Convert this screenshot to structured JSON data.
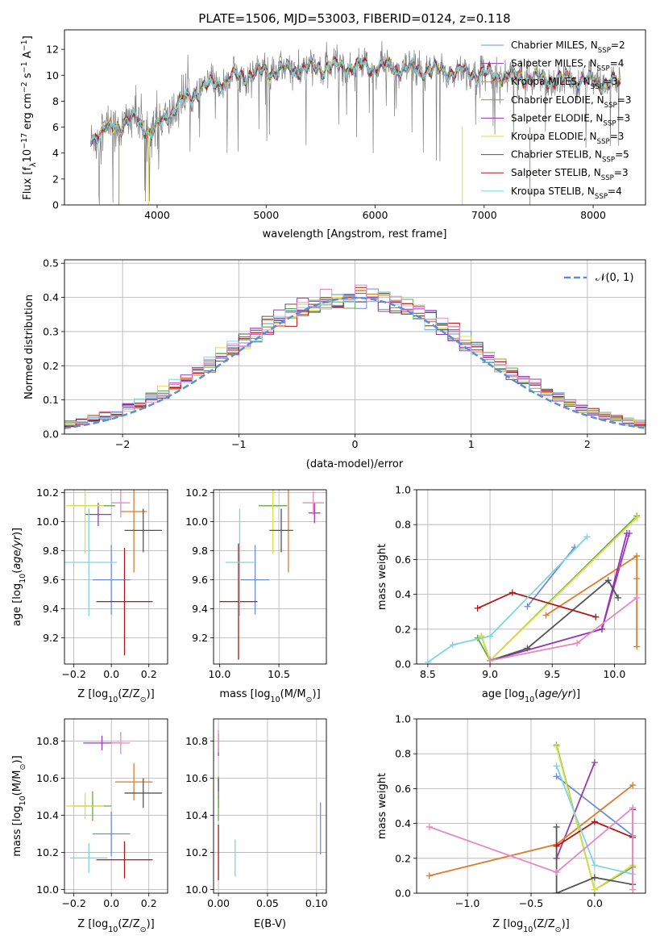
{
  "title": "PLATE=1506, MJD=53003, FIBERID=0124, z=0.118",
  "colors": {
    "chabrier_miles": "#6a8fd8",
    "salpeter_miles": "#9a3ab0",
    "kroupa_miles": "#e07a2a",
    "chabrier_elodie": "#66a84a",
    "salpeter_elodie": "#9a30b8",
    "kroupa_elodie": "#d8e040",
    "chabrier_stelib": "#555555",
    "salpeter_stelib": "#b01818",
    "kroupa_stelib": "#7fd4de",
    "pink": "#e888c0",
    "gauss": "#5a8fd8",
    "data": "#808080"
  },
  "chart_data": [
    {
      "id": "spectrum",
      "type": "line",
      "title": "PLATE=1506, MJD=53003, FIBERID=0124, z=0.118",
      "xlabel": "wavelength [Angstrom, rest frame]",
      "ylabel": "Flux [f",
      "xlim": [
        3150,
        8480
      ],
      "ylim": [
        0,
        13.5
      ],
      "xticks": [
        "4000",
        "5000",
        "6000",
        "7000",
        "8000"
      ],
      "xtick_values": [
        4000,
        5000,
        6000,
        7000,
        8000
      ],
      "yticks": [
        "0",
        "2",
        "4",
        "6",
        "8",
        "10",
        "12"
      ],
      "ytick_values": [
        0,
        2,
        4,
        6,
        8,
        10,
        12
      ],
      "legend_position": "upper-right",
      "legend": [
        {
          "label": "Chabrier MILES, N",
          "sub": "SSP",
          "val": "=2",
          "color": "#6a8fd8"
        },
        {
          "label": "Salpeter MILES, N",
          "sub": "SSP",
          "val": "=4",
          "color": "#9a3ab0"
        },
        {
          "label": "Kroupa MILES, N",
          "sub": "SSP",
          "val": "=3",
          "color": "#e07a2a"
        },
        {
          "label": "Chabrier ELODIE, N",
          "sub": "SSP",
          "val": "=3",
          "color": "#66a84a"
        },
        {
          "label": "Salpeter ELODIE, N",
          "sub": "SSP",
          "val": "=3",
          "color": "#9a30b8"
        },
        {
          "label": "Kroupa ELODIE, N",
          "sub": "SSP",
          "val": "=3",
          "color": "#d8e040"
        },
        {
          "label": "Chabrier STELIB, N",
          "sub": "SSP",
          "val": "=5",
          "color": "#555555"
        },
        {
          "label": "Salpeter STELIB, N",
          "sub": "SSP",
          "val": "=3",
          "color": "#b01818"
        },
        {
          "label": "Kroupa STELIB, N",
          "sub": "SSP",
          "val": "=4",
          "color": "#7fd4de"
        }
      ],
      "continuum_x": [
        3390,
        3600,
        3800,
        3950,
        4050,
        4200,
        4400,
        4600,
        4800,
        5000,
        5200,
        5500,
        5800,
        6100,
        6400,
        6700,
        7000,
        7300,
        7600,
        7900,
        8100,
        8250
      ],
      "continuum_y": [
        5.2,
        6.0,
        6.6,
        5.5,
        6.5,
        7.8,
        8.9,
        9.6,
        10.0,
        10.3,
        10.4,
        10.6,
        10.7,
        10.6,
        10.4,
        10.3,
        10.1,
        9.9,
        9.7,
        9.6,
        9.4,
        9.4
      ],
      "dropouts": [
        {
          "x": 3650,
          "color": "#e07a2a"
        },
        {
          "x": 3920,
          "color": "#d8e040"
        },
        {
          "x": 6800,
          "color": "#d8e040"
        },
        {
          "x": 7420,
          "color": "#e07a2a"
        }
      ]
    },
    {
      "id": "residual_hist",
      "type": "line",
      "xlabel": "(data-model)/error",
      "ylabel": "Normed distribution",
      "xlim": [
        -2.5,
        2.5
      ],
      "ylim": [
        0,
        0.51
      ],
      "xticks": [
        "−2",
        "−1",
        "0",
        "1",
        "2"
      ],
      "xtick_values": [
        -2,
        -1,
        0,
        1,
        2
      ],
      "yticks": [
        "0.0",
        "0.1",
        "0.2",
        "0.3",
        "0.4",
        "0.5"
      ],
      "ytick_values": [
        0,
        0.1,
        0.2,
        0.3,
        0.4,
        0.5
      ],
      "legend": [
        {
          "label": "𝒩(0, 1)",
          "color": "#5a8fd8",
          "style": "dashed"
        }
      ],
      "legend_position": "upper-right",
      "bin_width": 0.1,
      "bin_start": -2.5,
      "hist_colors": [
        "#6a8fd8",
        "#9a3ab0",
        "#e07a2a",
        "#66a84a",
        "#9a30b8",
        "#d8e040",
        "#555555",
        "#b01818",
        "#7fd4de",
        "#e888c0"
      ]
    },
    {
      "id": "age_vs_Z",
      "type": "scatter",
      "xlabel": "Z [log",
      "ylabel": "age  [log",
      "xlim": [
        -0.25,
        0.3
      ],
      "ylim": [
        9.02,
        10.22
      ],
      "xticks": [
        "−0.2",
        "0.0",
        "0.2"
      ],
      "xtick_values": [
        -0.2,
        0.0,
        0.2
      ],
      "yticks": [
        "9.2",
        "9.4",
        "9.6",
        "9.8",
        "10.0",
        "10.2"
      ],
      "ytick_values": [
        9.2,
        9.4,
        9.6,
        9.8,
        10.0,
        10.2
      ],
      "points": [
        {
          "x": 0.0,
          "y": 9.6,
          "xe": 0.1,
          "ye": 0.24,
          "color": "#6a8fd8"
        },
        {
          "x": -0.07,
          "y": 10.05,
          "xe": 0.07,
          "ye": 0.08,
          "color": "#9a3ab0"
        },
        {
          "x": 0.12,
          "y": 10.07,
          "xe": 0.07,
          "ye": 0.42,
          "color": "#e07a2a"
        },
        {
          "x": -0.1,
          "y": 10.11,
          "xe": 0.12,
          "ye": 0.0,
          "color": "#66a84a"
        },
        {
          "x": -0.14,
          "y": 10.11,
          "xe": 0.1,
          "ye": 0.33,
          "color": "#d8e040"
        },
        {
          "x": 0.17,
          "y": 9.94,
          "xe": 0.1,
          "ye": 0.15,
          "color": "#555555"
        },
        {
          "x": 0.07,
          "y": 9.45,
          "xe": 0.15,
          "ye": 0.37,
          "color": "#b01818"
        },
        {
          "x": -0.12,
          "y": 9.72,
          "xe": 0.15,
          "ye": 0.37,
          "color": "#7fd4de"
        },
        {
          "x": 0.05,
          "y": 10.13,
          "xe": 0.05,
          "ye": 0.1,
          "color": "#e888c0"
        }
      ]
    },
    {
      "id": "age_vs_mass",
      "type": "scatter",
      "xlabel": "mass [log",
      "ylabel": "",
      "xlim": [
        9.95,
        10.9
      ],
      "ylim": [
        9.02,
        10.22
      ],
      "xticks": [
        "10.0",
        "10.5"
      ],
      "xtick_values": [
        10.0,
        10.5
      ],
      "yticks": [
        "9.2",
        "9.4",
        "9.6",
        "9.8",
        "10.0",
        "10.2"
      ],
      "ytick_values": [
        9.2,
        9.4,
        9.6,
        9.8,
        10.0,
        10.2
      ],
      "points": [
        {
          "x": 10.3,
          "y": 9.6,
          "xe": 0.12,
          "ye": 0.24,
          "color": "#6a8fd8"
        },
        {
          "x": 10.8,
          "y": 10.06,
          "xe": 0.05,
          "ye": 0.07,
          "color": "#9a3ab0"
        },
        {
          "x": 10.58,
          "y": 10.07,
          "xe": 0.0,
          "ye": 0.42,
          "color": "#e07a2a"
        },
        {
          "x": 10.45,
          "y": 10.11,
          "xe": 0.12,
          "ye": 0.0,
          "color": "#66a84a"
        },
        {
          "x": 10.45,
          "y": 10.11,
          "xe": 0.0,
          "ye": 0.33,
          "color": "#d8e040"
        },
        {
          "x": 10.52,
          "y": 9.94,
          "xe": 0.1,
          "ye": 0.15,
          "color": "#555555"
        },
        {
          "x": 10.16,
          "y": 9.45,
          "xe": 0.16,
          "ye": 0.4,
          "color": "#b01818"
        },
        {
          "x": 10.17,
          "y": 9.72,
          "xe": 0.12,
          "ye": 0.37,
          "color": "#7fd4de"
        },
        {
          "x": 10.79,
          "y": 10.13,
          "xe": 0.09,
          "ye": 0.08,
          "color": "#e888c0"
        }
      ]
    },
    {
      "id": "massweight_vs_age",
      "type": "line",
      "xlabel": "age  [log",
      "ylabel": "mass weight",
      "xlim": [
        8.41,
        10.25
      ],
      "ylim": [
        0,
        1.0
      ],
      "xticks": [
        "8.5",
        "9.0",
        "9.5",
        "10.0"
      ],
      "xtick_values": [
        8.5,
        9.0,
        9.5,
        10.0
      ],
      "yticks": [
        "0.0",
        "0.2",
        "0.4",
        "0.6",
        "0.8",
        "1.0"
      ],
      "ytick_values": [
        0,
        0.2,
        0.4,
        0.6,
        0.8,
        1.0
      ],
      "series": [
        {
          "color": "#6a8fd8",
          "x": [
            9.3,
            9.68
          ],
          "y": [
            0.33,
            0.67
          ]
        },
        {
          "color": "#9a3ab0",
          "x": [
            9.9,
            10.12
          ],
          "y": [
            0.2,
            0.75
          ]
        },
        {
          "color": "#e07a2a",
          "x": [
            9.45,
            10.18,
            10.18,
            10.18
          ],
          "y": [
            0.28,
            0.62,
            0.49,
            0.1
          ]
        },
        {
          "color": "#66a84a",
          "x": [
            8.9,
            9.0,
            10.18
          ],
          "y": [
            0.15,
            0.02,
            0.85
          ]
        },
        {
          "color": "#9a30b8",
          "x": [
            8.93,
            9.0,
            9.9,
            10.1
          ],
          "y": [
            0.16,
            0.02,
            0.2,
            0.75
          ]
        },
        {
          "color": "#d8e040",
          "x": [
            8.93,
            9.0,
            10.18
          ],
          "y": [
            0.16,
            0.02,
            0.84
          ]
        },
        {
          "color": "#555555",
          "x": [
            9.0,
            9.3,
            9.95,
            10.03
          ],
          "y": [
            0.02,
            0.09,
            0.48,
            0.38
          ]
        },
        {
          "color": "#b01818",
          "x": [
            8.9,
            9.18,
            9.85
          ],
          "y": [
            0.32,
            0.41,
            0.27
          ]
        },
        {
          "color": "#7fd4de",
          "x": [
            8.5,
            8.7,
            9.0,
            9.78
          ],
          "y": [
            0.01,
            0.11,
            0.16,
            0.73
          ]
        },
        {
          "color": "#e888c0",
          "x": [
            9.0,
            9.7,
            10.18
          ],
          "y": [
            0.02,
            0.12,
            0.38
          ]
        }
      ]
    },
    {
      "id": "mass_vs_Z",
      "type": "scatter",
      "xlabel": "Z [log",
      "ylabel": "mass [log",
      "xlim": [
        -0.25,
        0.3
      ],
      "ylim": [
        9.98,
        10.92
      ],
      "xticks": [
        "−0.2",
        "0.0",
        "0.2"
      ],
      "xtick_values": [
        -0.2,
        0.0,
        0.2
      ],
      "yticks": [
        "10.0",
        "10.2",
        "10.4",
        "10.6",
        "10.8"
      ],
      "ytick_values": [
        10.0,
        10.2,
        10.4,
        10.6,
        10.8
      ],
      "points": [
        {
          "x": 0.0,
          "y": 10.3,
          "xe": 0.1,
          "ye": 0.12,
          "color": "#6a8fd8"
        },
        {
          "x": -0.05,
          "y": 10.79,
          "xe": 0.1,
          "ye": 0.04,
          "color": "#9a3ab0"
        },
        {
          "x": 0.12,
          "y": 10.58,
          "xe": 0.1,
          "ye": 0.1,
          "color": "#e07a2a"
        },
        {
          "x": -0.1,
          "y": 10.45,
          "xe": 0.1,
          "ye": 0.08,
          "color": "#66a84a"
        },
        {
          "x": -0.14,
          "y": 10.45,
          "xe": 0.1,
          "ye": 0.07,
          "color": "#d8e040"
        },
        {
          "x": 0.17,
          "y": 10.52,
          "xe": 0.1,
          "ye": 0.08,
          "color": "#555555"
        },
        {
          "x": 0.07,
          "y": 10.16,
          "xe": 0.15,
          "ye": 0.1,
          "color": "#b01818"
        },
        {
          "x": -0.12,
          "y": 10.17,
          "xe": 0.1,
          "ye": 0.08,
          "color": "#7fd4de"
        },
        {
          "x": 0.05,
          "y": 10.79,
          "xe": 0.05,
          "ye": 0.06,
          "color": "#e888c0"
        }
      ]
    },
    {
      "id": "mass_vs_ebv",
      "type": "scatter",
      "xlabel": "E(B-V)",
      "ylabel": "",
      "xlim": [
        -0.005,
        0.11
      ],
      "ylim": [
        9.98,
        10.92
      ],
      "xticks": [
        "0.00",
        "0.05",
        "0.10"
      ],
      "xtick_values": [
        0.0,
        0.05,
        0.1
      ],
      "yticks": [
        "10.0",
        "10.2",
        "10.4",
        "10.6",
        "10.8"
      ],
      "ytick_values": [
        10.0,
        10.2,
        10.4,
        10.6,
        10.8
      ],
      "points": [
        {
          "x": 0.0,
          "y": 10.78,
          "xe": 0,
          "ye": 0.06,
          "color": "#9a3ab0"
        },
        {
          "x": 0.0,
          "y": 10.8,
          "xe": 0,
          "ye": 0.06,
          "color": "#e888c0"
        },
        {
          "x": 0.0,
          "y": 10.55,
          "xe": 0,
          "ye": 0.06,
          "color": "#e07a2a"
        },
        {
          "x": 0.0,
          "y": 10.52,
          "xe": 0,
          "ye": 0.08,
          "color": "#555555"
        },
        {
          "x": 0.0,
          "y": 10.45,
          "xe": 0,
          "ye": 0.08,
          "color": "#66a84a"
        },
        {
          "x": 0.0,
          "y": 10.2,
          "xe": 0,
          "ye": 0.15,
          "color": "#b01818"
        },
        {
          "x": 0.017,
          "y": 10.17,
          "xe": 0,
          "ye": 0.1,
          "color": "#7fd4de"
        },
        {
          "x": 0.104,
          "y": 10.33,
          "xe": 0,
          "ye": 0.14,
          "color": "#6a8fd8"
        }
      ]
    },
    {
      "id": "massweight_vs_Z",
      "type": "line",
      "xlabel": "Z [log",
      "ylabel": "mass weight",
      "xlim": [
        -1.4,
        0.4
      ],
      "ylim": [
        0,
        1.0
      ],
      "xticks": [
        "−1.0",
        "−0.5",
        "0.0"
      ],
      "xtick_values": [
        -1.0,
        -0.5,
        0.0
      ],
      "yticks": [
        "0.0",
        "0.2",
        "0.4",
        "0.6",
        "0.8",
        "1.0"
      ],
      "ytick_values": [
        0,
        0.2,
        0.4,
        0.6,
        0.8,
        1.0
      ],
      "series": [
        {
          "color": "#6a8fd8",
          "x": [
            -0.3,
            0.3
          ],
          "y": [
            0.67,
            0.33
          ]
        },
        {
          "color": "#9a3ab0",
          "x": [
            -0.3,
            0.0
          ],
          "y": [
            0.2,
            0.75
          ]
        },
        {
          "color": "#e07a2a",
          "x": [
            -1.3,
            -0.3,
            0.3
          ],
          "y": [
            0.1,
            0.28,
            0.62
          ]
        },
        {
          "color": "#66a84a",
          "x": [
            -0.3,
            0.0,
            0.3
          ],
          "y": [
            0.85,
            0.02,
            0.15
          ]
        },
        {
          "color": "#d8e040",
          "x": [
            -0.3,
            0.0,
            0.3
          ],
          "y": [
            0.84,
            0.02,
            0.16
          ]
        },
        {
          "color": "#555555",
          "x": [
            -0.3,
            -0.3,
            0.0,
            0.3,
            0.3
          ],
          "y": [
            0.38,
            0.0,
            0.09,
            0.05,
            0.48
          ]
        },
        {
          "color": "#b01818",
          "x": [
            -0.3,
            0.0,
            0.3
          ],
          "y": [
            0.27,
            0.41,
            0.32
          ]
        },
        {
          "color": "#7fd4de",
          "x": [
            -0.3,
            0.0,
            0.3
          ],
          "y": [
            0.73,
            0.16,
            0.11
          ]
        },
        {
          "color": "#e888c0",
          "x": [
            -1.3,
            -0.3,
            0.3,
            0.3
          ],
          "y": [
            0.38,
            0.12,
            0.49,
            0.02
          ]
        }
      ]
    }
  ]
}
